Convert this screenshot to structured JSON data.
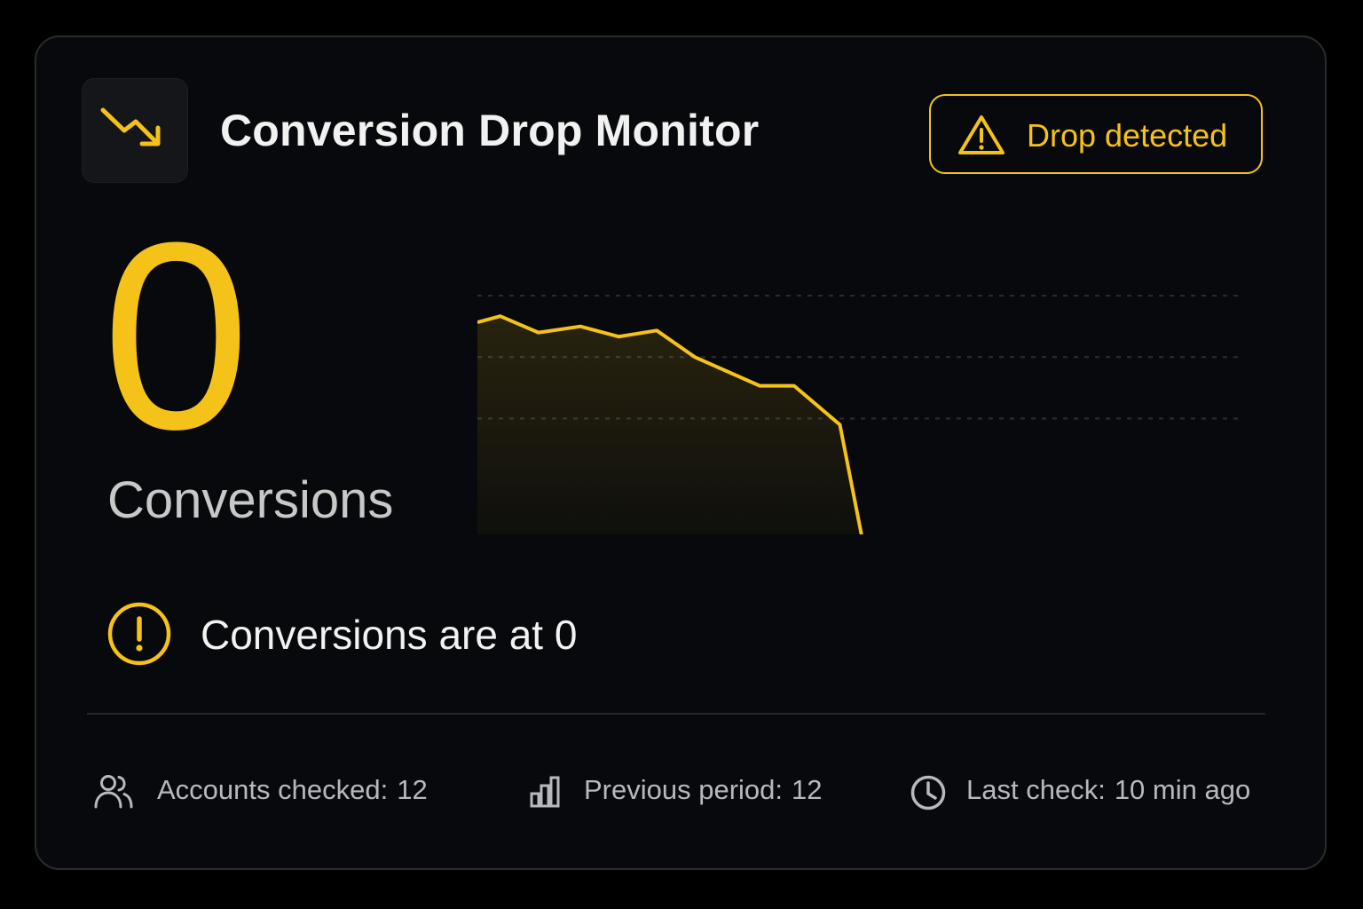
{
  "header": {
    "title": "Conversion Drop Monitor",
    "app_icon": "trending-down-icon",
    "badge": {
      "icon": "warning-triangle-icon",
      "label": "Drop detected"
    }
  },
  "metric": {
    "value": "0",
    "label": "Conversions"
  },
  "alert": {
    "icon": "exclamation-circle-icon",
    "message": "Conversions are at 0"
  },
  "footer": {
    "stats": [
      {
        "icon": "users-icon",
        "label": "Accounts checked:",
        "value": "12"
      },
      {
        "icon": "bar-chart-icon",
        "label": "Previous period:",
        "value": "12"
      },
      {
        "icon": "clock-icon",
        "label": "Last check:",
        "value": "10 min ago"
      }
    ]
  },
  "colors": {
    "accent": "#f5c21a",
    "background": "#07090c",
    "text": "#f1f1f1",
    "muted": "#b8b9bc"
  },
  "chart_data": {
    "type": "area",
    "title": "",
    "xlabel": "",
    "ylabel": "",
    "grid": true,
    "ylim": [
      0,
      13
    ],
    "x": [
      0,
      1,
      2,
      3,
      4,
      5,
      6,
      7,
      8,
      9,
      10,
      11,
      12,
      13,
      14,
      15,
      16,
      17,
      18,
      19,
      20,
      21
    ],
    "series": [
      {
        "values": [
          10.7,
          11.0,
          10.2,
          10.5,
          10.0,
          10.3,
          9.0,
          7.6,
          7.6,
          5.7,
          0,
          0,
          0,
          0,
          0,
          0,
          0,
          0,
          0,
          0,
          0,
          0
        ]
      }
    ],
    "x_breakpoints": [
      0,
      0.6,
      1.6,
      2.7,
      3.7,
      4.7,
      5.7,
      7.4,
      8.3,
      9.5,
      10.1,
      20
    ]
  }
}
